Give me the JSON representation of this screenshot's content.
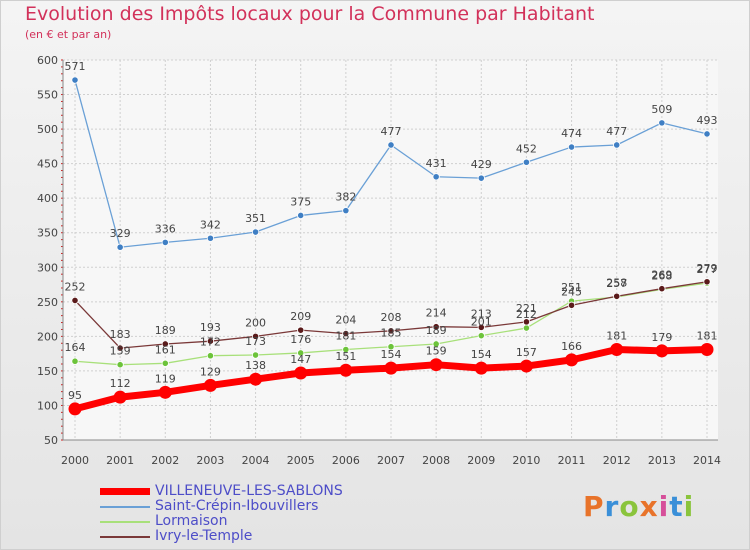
{
  "title": "Evolution des Impôts locaux pour la Commune par Habitant",
  "subtitle": "(en € et par an)",
  "logo": {
    "text": "Proxiti",
    "colors": [
      "#e8732a",
      "#3a8fd8",
      "#8ac43c",
      "#e8732a",
      "#d64f9a",
      "#3a8fd8",
      "#8ac43c"
    ]
  },
  "chart_data": {
    "type": "line",
    "categories": [
      "2000",
      "2001",
      "2002",
      "2003",
      "2004",
      "2005",
      "2006",
      "2007",
      "2008",
      "2009",
      "2010",
      "2011",
      "2012",
      "2013",
      "2014"
    ],
    "ylim": [
      50,
      600
    ],
    "yticks": [
      50,
      100,
      150,
      200,
      250,
      300,
      350,
      400,
      450,
      500,
      550,
      600
    ],
    "series": [
      {
        "name": "Saint-Crépin-Ibouvillers",
        "color": "#6aa0d6",
        "marker": "#3f7fc4",
        "width": 1.3,
        "values": [
          571,
          329,
          336,
          342,
          351,
          375,
          382,
          477,
          431,
          429,
          452,
          474,
          477,
          509,
          493
        ]
      },
      {
        "name": "Lormaison",
        "color": "#a8e07a",
        "marker": "#6cc33a",
        "width": 1.3,
        "values": [
          164,
          159,
          161,
          172,
          173,
          176,
          181,
          185,
          189,
          201,
          212,
          251,
          257,
          268,
          277
        ]
      },
      {
        "name": "Ivry-le-Temple",
        "color": "#7a3838",
        "marker": "#5a1a1a",
        "width": 1.3,
        "values": [
          252,
          183,
          189,
          193,
          200,
          209,
          204,
          208,
          214,
          213,
          221,
          245,
          258,
          269,
          279
        ]
      },
      {
        "name": "VILLENEUVE-LES-SABLONS",
        "color": "#ff0000",
        "marker": "#ff0000",
        "width": 7,
        "values": [
          95,
          112,
          119,
          129,
          138,
          147,
          151,
          154,
          159,
          154,
          157,
          166,
          181,
          179,
          181
        ]
      }
    ],
    "legend_order": [
      3,
      0,
      1,
      2
    ]
  }
}
